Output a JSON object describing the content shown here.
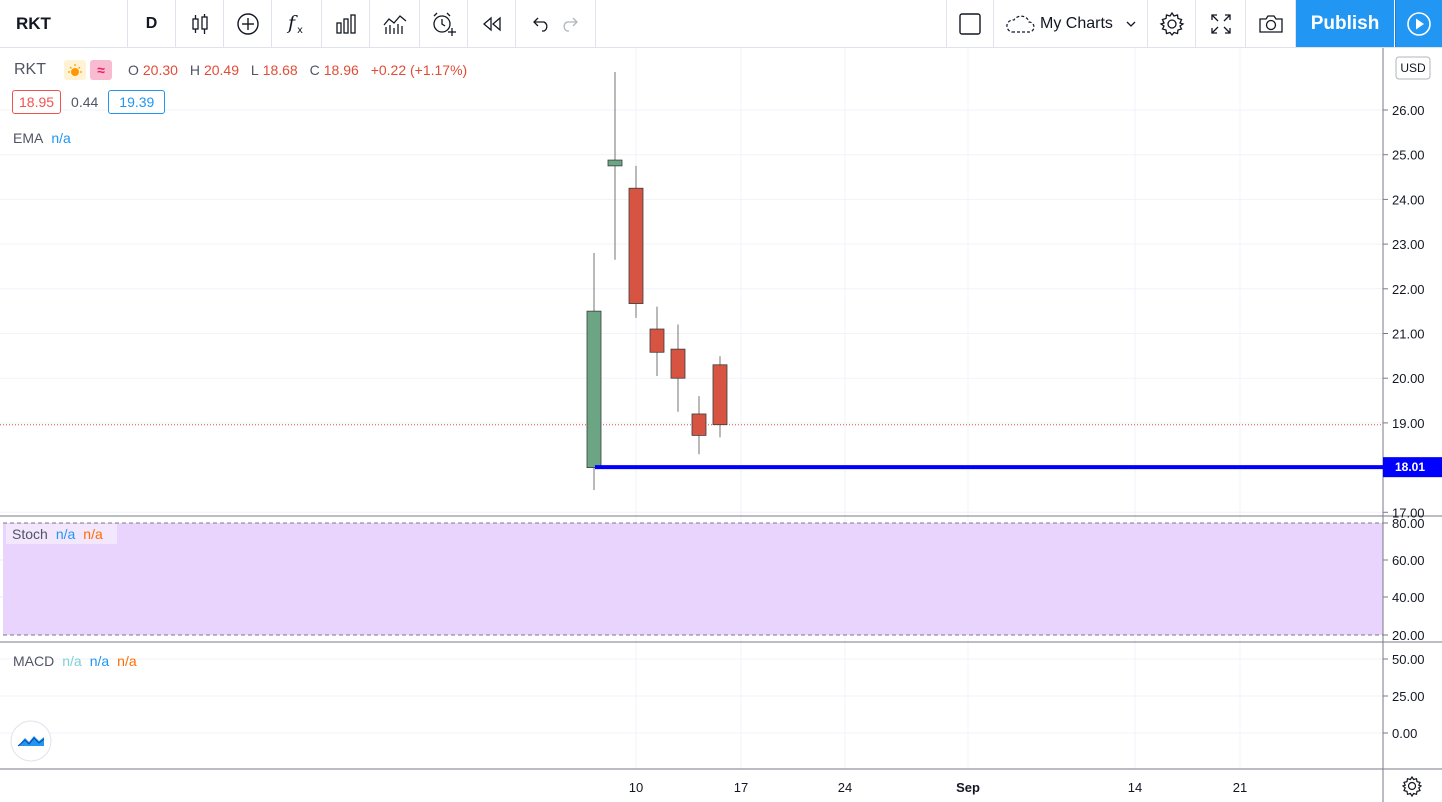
{
  "toolbar": {
    "symbol": "RKT",
    "interval": "D",
    "my_charts": "My Charts",
    "publish": "Publish",
    "icons": [
      "candles-icon",
      "add-icon",
      "fx-icon",
      "bars-icon",
      "indicator-icon",
      "alert-icon",
      "replay-icon",
      "undo-icon",
      "redo-icon",
      "layout-icon",
      "cloud-icon",
      "chevron-down-icon",
      "gear-icon",
      "fullscreen-icon",
      "camera-icon",
      "play-icon"
    ]
  },
  "legend": {
    "symbol": "RKT",
    "open_label": "O",
    "open": "20.30",
    "high_label": "H",
    "high": "20.49",
    "low_label": "L",
    "low": "18.68",
    "close_label": "C",
    "close": "18.96",
    "change": "+0.22 (+1.17%)",
    "bid": "18.95",
    "spread": "0.44",
    "ask": "19.39"
  },
  "indicators": {
    "ema": {
      "name": "EMA",
      "value": "n/a"
    },
    "stoch": {
      "name": "Stoch",
      "k": "n/a",
      "d": "n/a"
    },
    "macd": {
      "name": "MACD",
      "v1": "n/a",
      "v2": "n/a",
      "v3": "n/a"
    }
  },
  "price_axis": {
    "currency": "USD",
    "ticks": [
      "26.00",
      "25.00",
      "24.00",
      "23.00",
      "22.00",
      "21.00",
      "20.00",
      "19.00",
      "17.00"
    ],
    "hline_label": "18.01",
    "stoch_ticks": [
      "80.00",
      "60.00",
      "40.00",
      "20.00"
    ],
    "macd_ticks": [
      "50.00",
      "25.00",
      "0.00"
    ]
  },
  "time_axis": {
    "ticks": [
      "10",
      "17",
      "24",
      "Sep",
      "14",
      "21"
    ]
  },
  "colors": {
    "up": "#6ba583",
    "down": "#d75442",
    "hline": "#0000ff",
    "stoch_band": "#e8d4fc",
    "accent": "#2196f3"
  },
  "chart_data": {
    "type": "candlestick",
    "candles": [
      {
        "o": 18.0,
        "h": 22.8,
        "l": 17.5,
        "c": 21.5
      },
      {
        "o": 24.75,
        "h": 26.85,
        "l": 22.65,
        "c": 24.88
      },
      {
        "o": 24.25,
        "h": 24.75,
        "l": 21.35,
        "c": 21.67
      },
      {
        "o": 21.1,
        "h": 21.6,
        "l": 20.05,
        "c": 20.58
      },
      {
        "o": 20.65,
        "h": 21.2,
        "l": 19.25,
        "c": 20.0
      },
      {
        "o": 19.2,
        "h": 19.6,
        "l": 18.3,
        "c": 18.72
      },
      {
        "o": 20.3,
        "h": 20.49,
        "l": 18.68,
        "c": 18.96
      }
    ],
    "horizontal_line": 18.01,
    "last_price_line": 18.96
  }
}
